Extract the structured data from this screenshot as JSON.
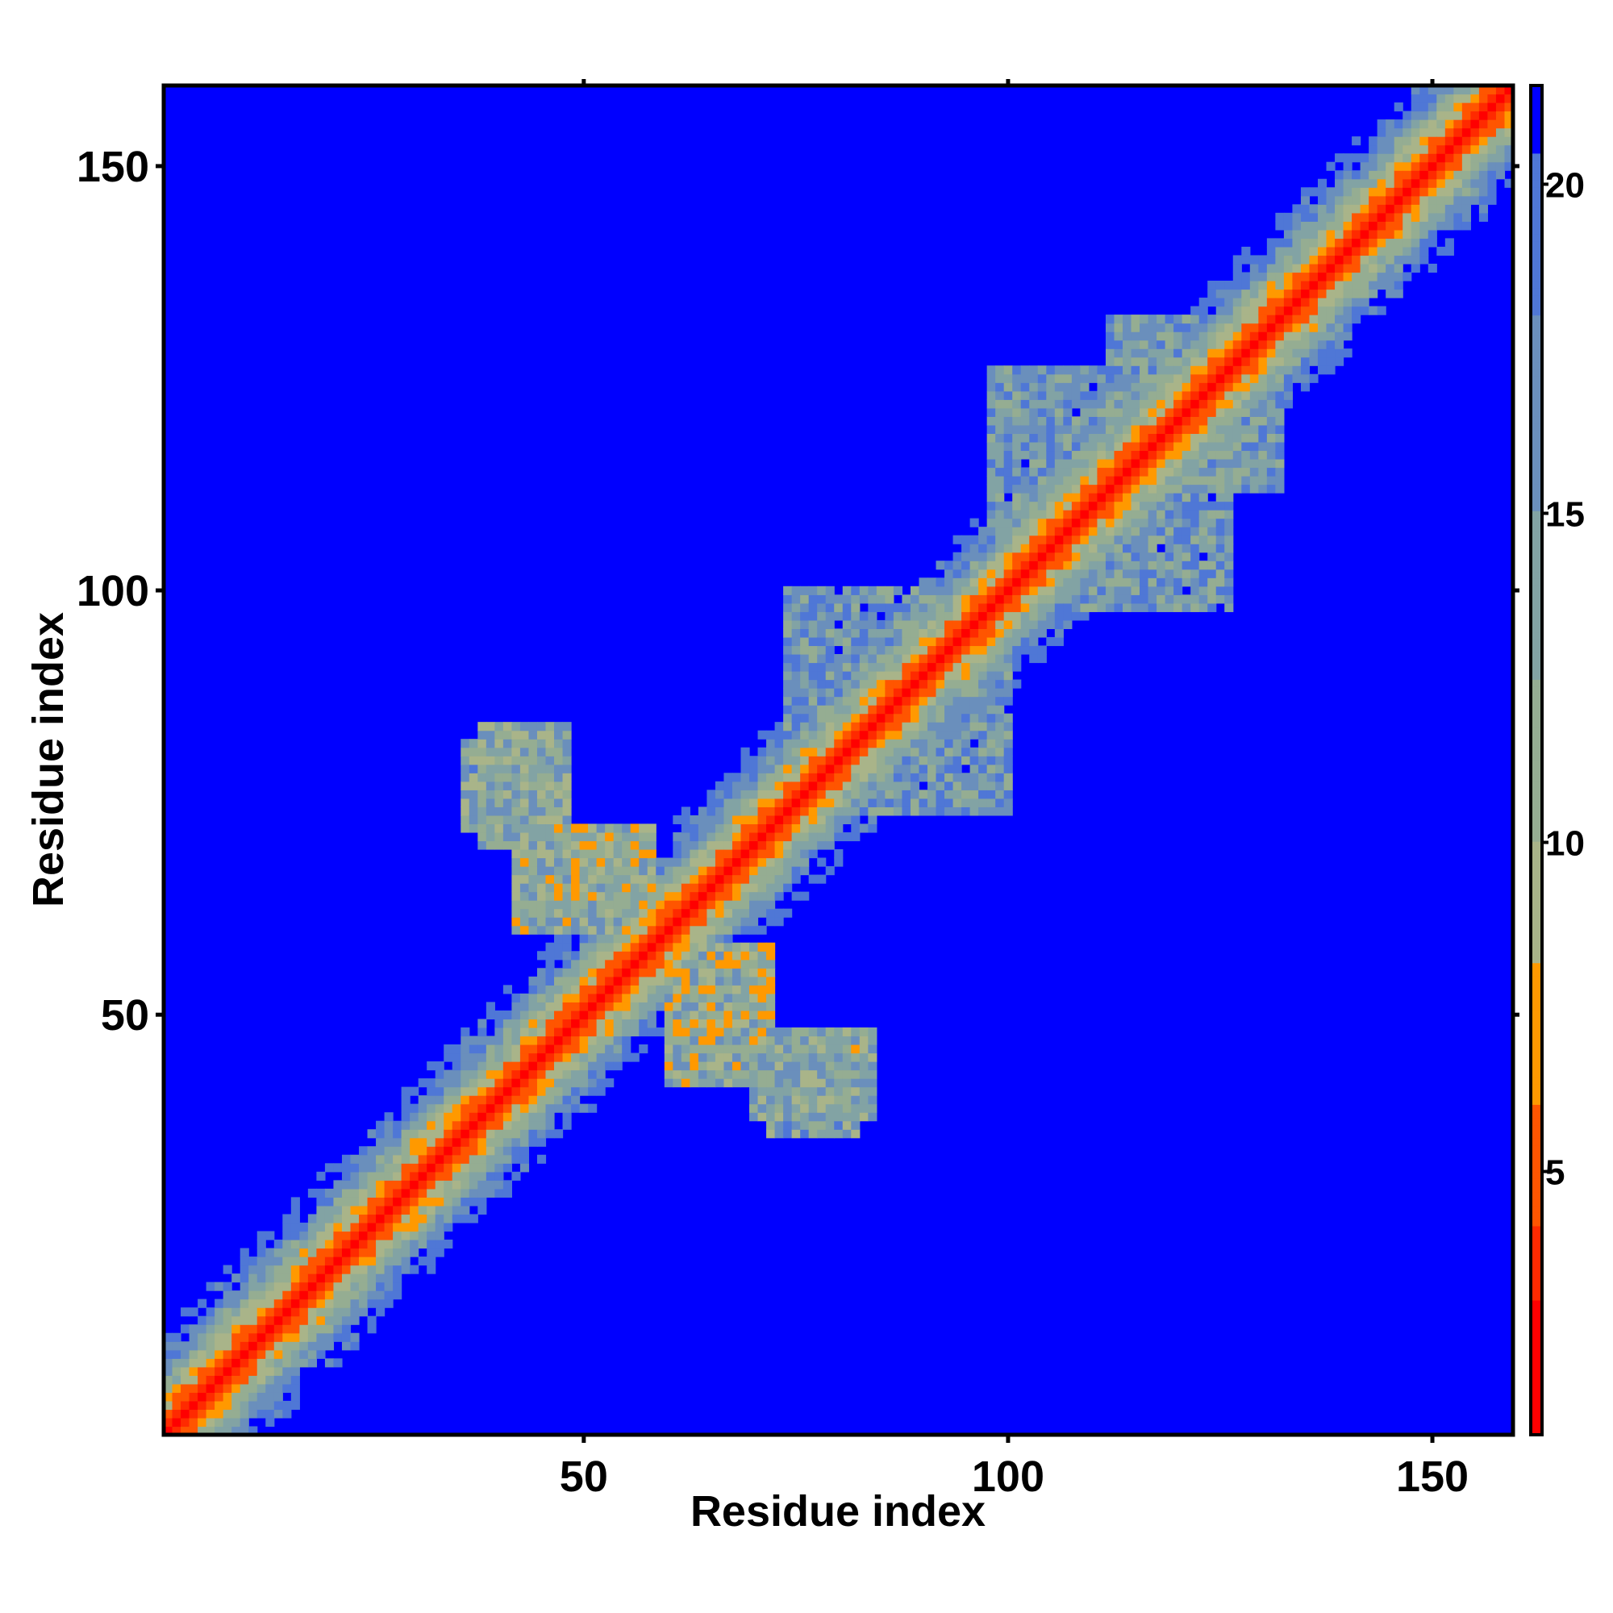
{
  "chart_data": {
    "type": "heatmap",
    "title": "",
    "xlabel": "Residue index",
    "ylabel": "Residue index",
    "n_residues": 159,
    "xlim": [
      1,
      159
    ],
    "ylim": [
      1,
      159
    ],
    "x_ticks": [
      50,
      100,
      150
    ],
    "y_ticks": [
      50,
      100,
      150
    ],
    "x_tick_labels": [
      "50",
      "100",
      "150"
    ],
    "y_tick_labels": [
      "50",
      "100",
      "150"
    ],
    "colorbar": {
      "range": [
        1,
        21.5
      ],
      "ticks": [
        5,
        10,
        15,
        20
      ],
      "tick_labels": [
        "5",
        "10",
        "15",
        "20"
      ]
    },
    "color_levels": [
      {
        "max": 3.0,
        "color": "#ff0000"
      },
      {
        "max": 4.2,
        "color": "#ff2a00"
      },
      {
        "max": 6.0,
        "color": "#ff5500"
      },
      {
        "max": 8.2,
        "color": "#ff9900"
      },
      {
        "max": 10.0,
        "color": "#a9b489"
      },
      {
        "max": 12.5,
        "color": "#95ad92"
      },
      {
        "max": 15.0,
        "color": "#82a3a4"
      },
      {
        "max": 18.0,
        "color": "#6a8fbc"
      },
      {
        "max": 20.5,
        "color": "#4f77d6"
      },
      {
        "max": 99,
        "color": "#0000ff"
      }
    ],
    "diagonal_distance_profile": [
      {
        "offset": 0,
        "distance": 1.5
      },
      {
        "offset": 1,
        "distance": 3.8
      },
      {
        "offset": 2,
        "distance": 5.5
      },
      {
        "offset": 3,
        "distance": 7.0
      },
      {
        "offset": 4,
        "distance": 9.0
      },
      {
        "offset": 5,
        "distance": 10.5
      },
      {
        "offset": 6,
        "distance": 12.5
      },
      {
        "offset": 7,
        "distance": 14.5
      },
      {
        "offset": 8,
        "distance": 16.5
      },
      {
        "offset": 9,
        "distance": 18.5
      },
      {
        "offset": 10,
        "distance": 20.0
      }
    ],
    "contact_regions": [
      {
        "i": [
          38,
          48
        ],
        "j": [
          70,
          84
        ],
        "distance": 13
      },
      {
        "i": [
          48,
          56
        ],
        "j": [
          60,
          72
        ],
        "distance": 11
      },
      {
        "i": [
          60,
          72
        ],
        "j": [
          42,
          58
        ],
        "distance": 12
      },
      {
        "i": [
          72,
          82
        ],
        "j": [
          36,
          46
        ],
        "distance": 14
      },
      {
        "i": [
          84,
          100
        ],
        "j": [
          74,
          92
        ],
        "distance": 16
      },
      {
        "i": [
          104,
          126
        ],
        "j": [
          98,
          116
        ],
        "distance": 16
      },
      {
        "i": [
          112,
          128
        ],
        "j": [
          120,
          132
        ],
        "distance": 15
      }
    ]
  }
}
